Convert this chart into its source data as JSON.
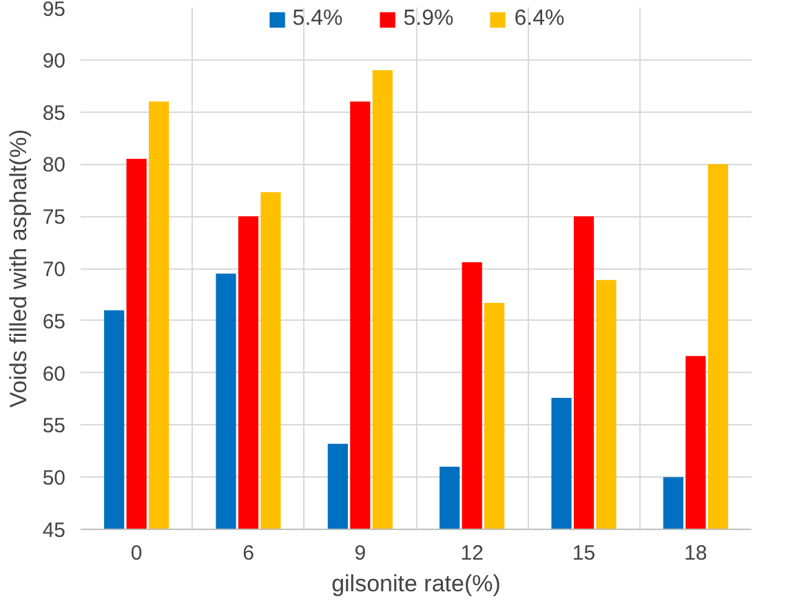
{
  "chart_data": {
    "type": "bar",
    "xlabel": "gilsonite rate(%)",
    "ylabel": "Voids filled with asphalt(%)",
    "categories": [
      "0",
      "6",
      "9",
      "12",
      "15",
      "18"
    ],
    "series": [
      {
        "name": "5.4%",
        "color": "#0070c0",
        "values": [
          66,
          69.5,
          53.2,
          51,
          57.6,
          50
        ]
      },
      {
        "name": "5.9%",
        "color": "#ff0000",
        "values": [
          80.5,
          75,
          86,
          70.6,
          75,
          61.6
        ]
      },
      {
        "name": "6.4%",
        "color": "#ffc000",
        "values": [
          86,
          77.3,
          89,
          66.7,
          68.9,
          80
        ]
      }
    ],
    "ylim": [
      45,
      95
    ],
    "yticks": [
      45,
      50,
      55,
      60,
      65,
      70,
      75,
      80,
      85,
      90,
      95
    ],
    "grid": true,
    "legend": "top"
  }
}
